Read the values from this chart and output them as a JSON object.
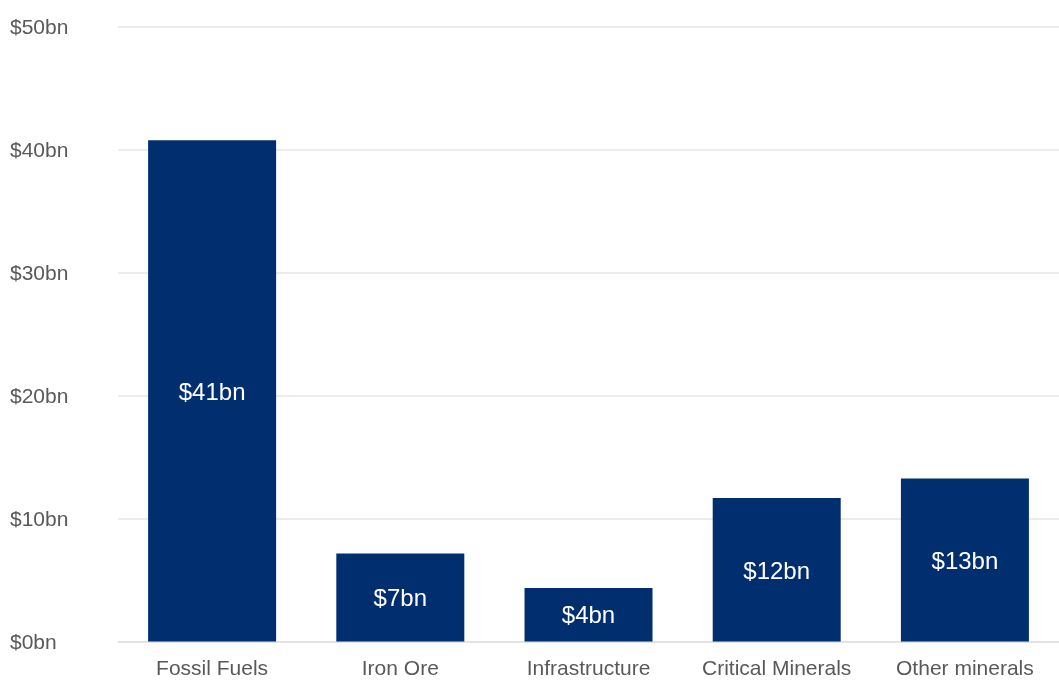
{
  "chart_data": {
    "type": "bar",
    "categories": [
      "Fossil Fuels",
      "Iron Ore",
      "Infrastructure",
      "Critical Minerals",
      "Other minerals"
    ],
    "values": [
      40.8,
      7.2,
      4.4,
      11.7,
      13.3
    ],
    "color": "#002e6e",
    "value_labels": [
      "$41bn",
      "$7bn",
      "$4bn",
      "$12bn",
      "$13bn"
    ],
    "ylim": [
      0,
      50
    ],
    "yticks": [
      {
        "value": 0,
        "label": "$0bn"
      },
      {
        "value": 10,
        "label": "$10bn"
      },
      {
        "value": 20,
        "label": "$20bn"
      },
      {
        "value": 30,
        "label": "$30bn"
      },
      {
        "value": 40,
        "label": "$40bn"
      },
      {
        "value": 50,
        "label": "$50bn"
      }
    ],
    "grid": "y"
  }
}
